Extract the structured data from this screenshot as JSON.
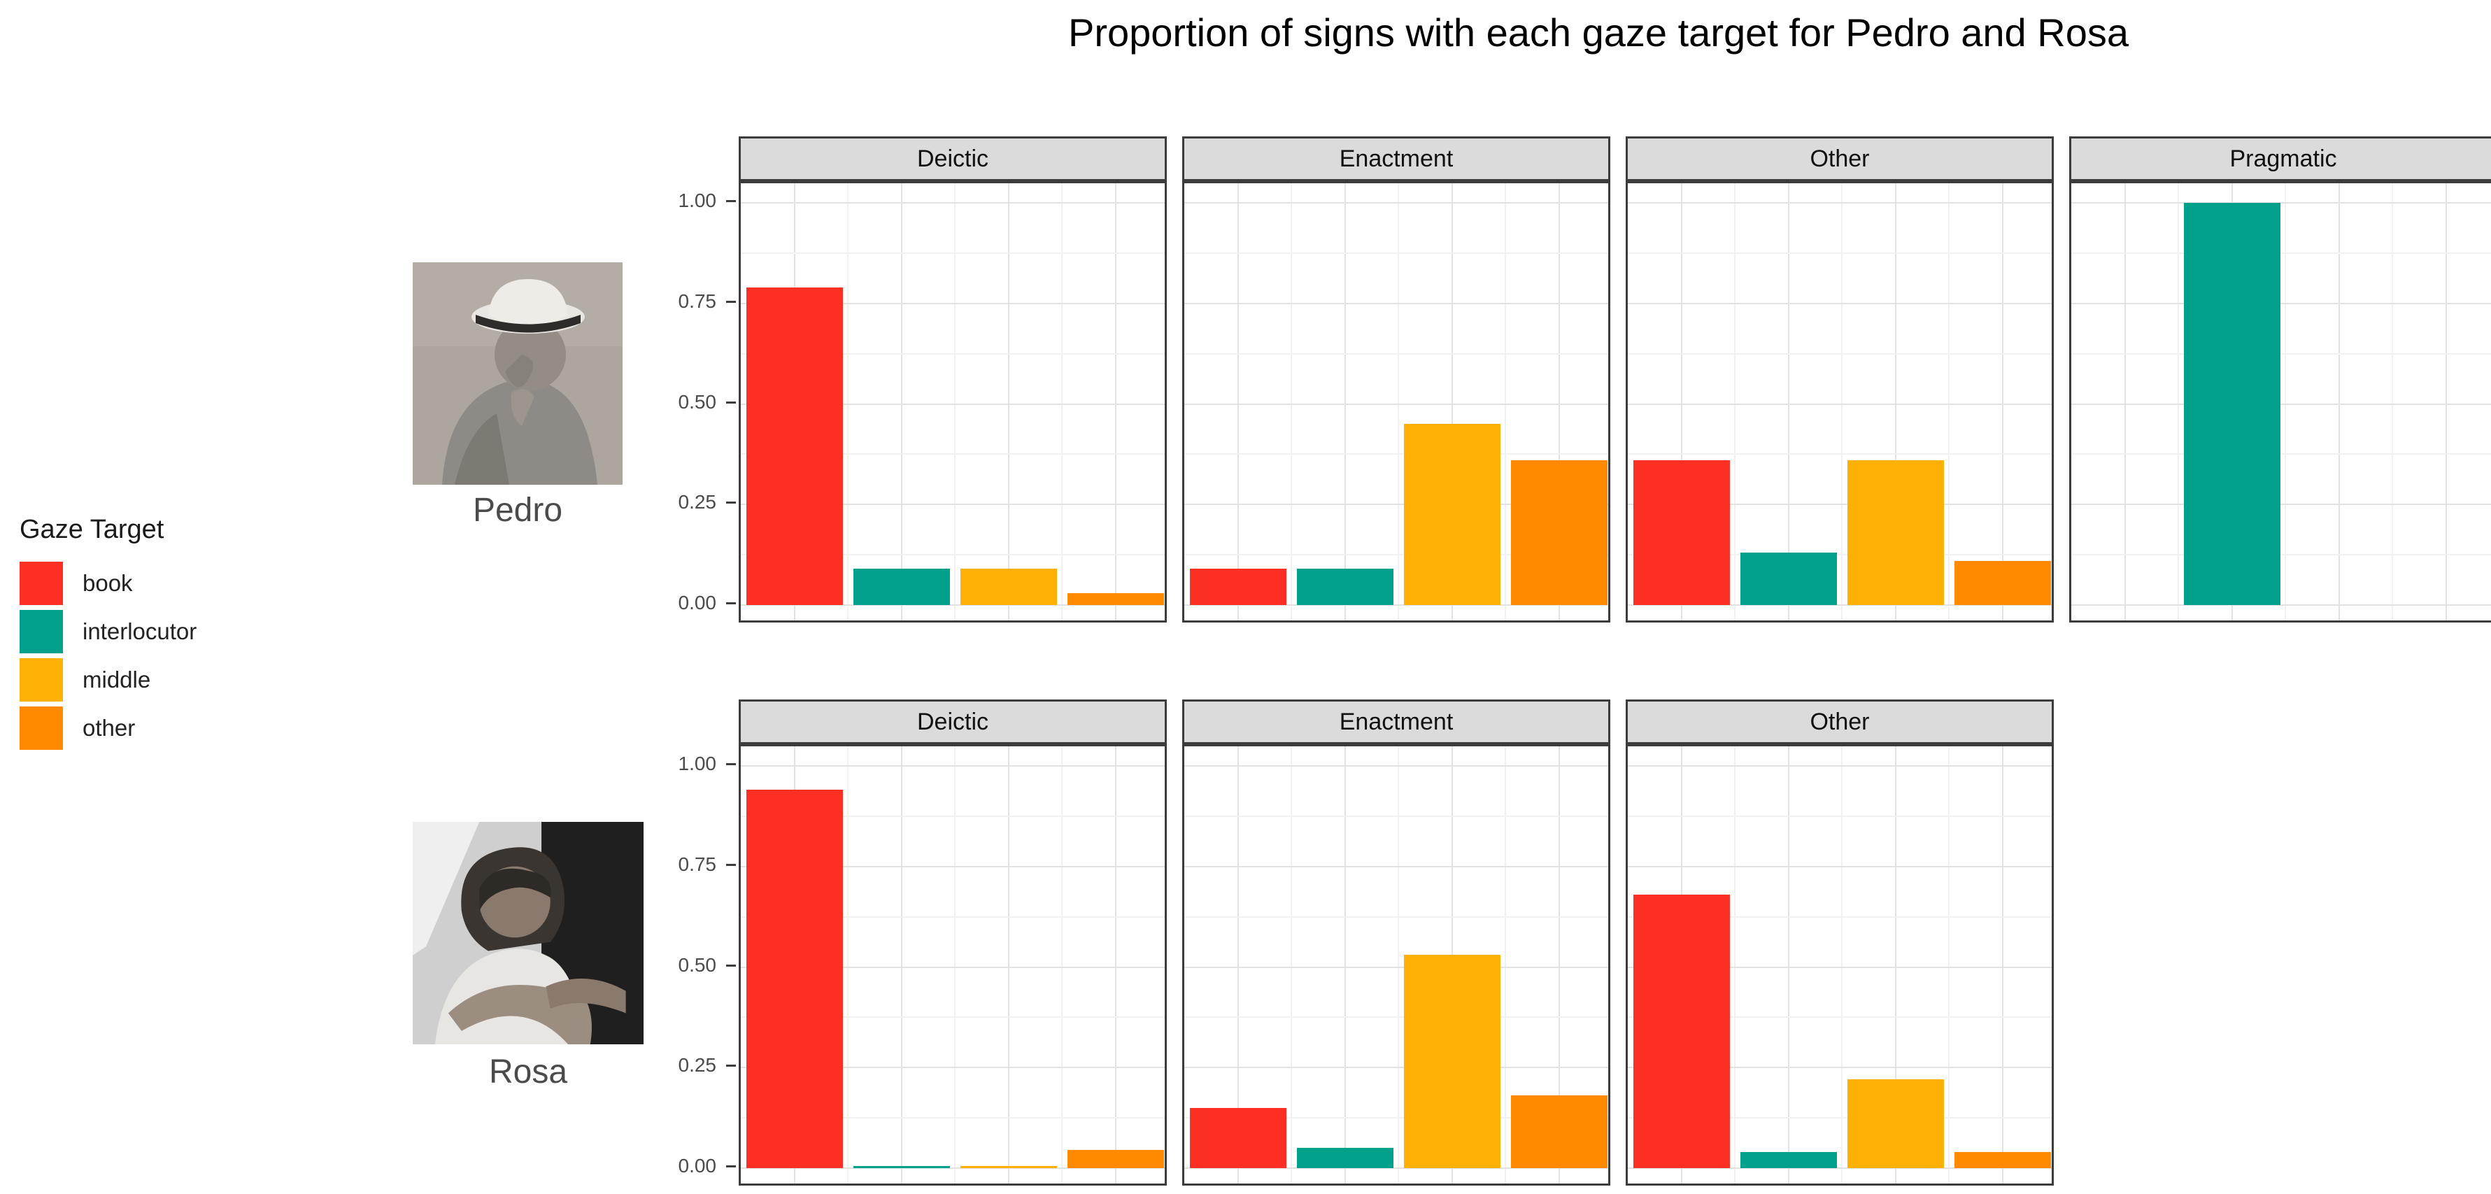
{
  "title": "Proportion of signs with each gaze target for Pedro and Rosa",
  "legend": {
    "title": "Gaze Target",
    "items": [
      {
        "label": "book",
        "color": "#fb3022"
      },
      {
        "label": "interlocutor",
        "color": "#00a08a"
      },
      {
        "label": "middle",
        "color": "#ffb005"
      },
      {
        "label": "other",
        "color": "#ff8a00"
      }
    ]
  },
  "photos": [
    {
      "caption": "Pedro",
      "description": "grayscale photo of elderly man wearing a brimmed hat, hand on chin"
    },
    {
      "caption": "Rosa",
      "description": "grayscale photo of young girl with arms crossed in front"
    }
  ],
  "y_axis": {
    "tick_labels": [
      "1.00",
      "0.75",
      "0.50",
      "0.25",
      "0.00"
    ]
  },
  "chart_data": {
    "type": "bar",
    "title": "Proportion of signs with each gaze target for Pedro and Rosa",
    "facet_rows": [
      "Pedro",
      "Rosa"
    ],
    "facet_cols": [
      "Deictic",
      "Enactment",
      "Other",
      "Pragmatic"
    ],
    "categories": [
      "book",
      "interlocutor",
      "middle",
      "other"
    ],
    "colors": [
      "#fb3022",
      "#00a08a",
      "#ffb005",
      "#ff8a00"
    ],
    "ylim": [
      0,
      1
    ],
    "yticks": [
      1.0,
      0.75,
      0.5,
      0.25,
      0.0
    ],
    "grid": true,
    "legend_position": "left",
    "panels": [
      {
        "row": "Pedro",
        "col": "Deictic",
        "values": [
          0.79,
          0.09,
          0.09,
          0.03
        ]
      },
      {
        "row": "Pedro",
        "col": "Enactment",
        "values": [
          0.09,
          0.09,
          0.45,
          0.36
        ]
      },
      {
        "row": "Pedro",
        "col": "Other",
        "values": [
          0.36,
          0.13,
          0.36,
          0.11
        ]
      },
      {
        "row": "Pedro",
        "col": "Pragmatic",
        "values": [
          0,
          1.0,
          0,
          0
        ]
      },
      {
        "row": "Rosa",
        "col": "Deictic",
        "values": [
          0.94,
          0.005,
          0.005,
          0.045
        ]
      },
      {
        "row": "Rosa",
        "col": "Enactment",
        "values": [
          0.15,
          0.05,
          0.53,
          0.18
        ]
      },
      {
        "row": "Rosa",
        "col": "Other",
        "values": [
          0.68,
          0.04,
          0.22,
          0.04
        ]
      }
    ]
  }
}
